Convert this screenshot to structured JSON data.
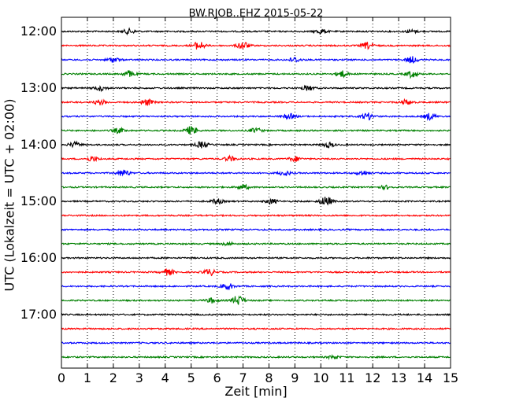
{
  "chart_data": {
    "type": "line",
    "title": "BW.RJOB..EHZ 2015-05-22",
    "xlabel": "Zeit  [min]",
    "ylabel": "UTC (Lokalzeit = UTC + 02:00)",
    "xlim": [
      0,
      15
    ],
    "x_ticks": [
      "0",
      "1",
      "2",
      "3",
      "4",
      "5",
      "6",
      "7",
      "8",
      "9",
      "10",
      "11",
      "12",
      "13",
      "14",
      "15"
    ],
    "y_ticks": [
      "12:00",
      "13:00",
      "14:00",
      "15:00",
      "16:00",
      "17:00"
    ],
    "grid": "vertical dotted",
    "colors": [
      "#000000",
      "#ff0000",
      "#0000ff",
      "#008000"
    ],
    "traces": [
      {
        "start": "12:00",
        "color": "#000000",
        "bursts": [
          {
            "x": 2.6,
            "a": 3
          },
          {
            "x": 10.0,
            "a": 3
          },
          {
            "x": 13.5,
            "a": 2
          }
        ]
      },
      {
        "start": "12:15",
        "color": "#ff0000",
        "bursts": [
          {
            "x": 5.3,
            "a": 5
          },
          {
            "x": 7.0,
            "a": 5
          },
          {
            "x": 11.8,
            "a": 4
          }
        ]
      },
      {
        "start": "12:30",
        "color": "#0000ff",
        "bursts": [
          {
            "x": 2.0,
            "a": 3
          },
          {
            "x": 9.0,
            "a": 3
          },
          {
            "x": 13.5,
            "a": 4
          }
        ]
      },
      {
        "start": "12:45",
        "color": "#008000",
        "bursts": [
          {
            "x": 2.6,
            "a": 4
          },
          {
            "x": 10.8,
            "a": 4
          },
          {
            "x": 13.5,
            "a": 4
          }
        ]
      },
      {
        "start": "13:00",
        "color": "#000000",
        "bursts": [
          {
            "x": 1.5,
            "a": 3
          },
          {
            "x": 9.5,
            "a": 3
          }
        ]
      },
      {
        "start": "13:15",
        "color": "#ff0000",
        "bursts": [
          {
            "x": 1.5,
            "a": 3
          },
          {
            "x": 3.3,
            "a": 4
          },
          {
            "x": 13.3,
            "a": 3
          }
        ]
      },
      {
        "start": "13:30",
        "color": "#0000ff",
        "bursts": [
          {
            "x": 8.8,
            "a": 3
          },
          {
            "x": 11.8,
            "a": 4
          },
          {
            "x": 14.2,
            "a": 4
          }
        ]
      },
      {
        "start": "13:45",
        "color": "#008000",
        "bursts": [
          {
            "x": 2.2,
            "a": 3
          },
          {
            "x": 5.0,
            "a": 5
          },
          {
            "x": 7.5,
            "a": 3
          }
        ]
      },
      {
        "start": "14:00",
        "color": "#000000",
        "bursts": [
          {
            "x": 0.5,
            "a": 3
          },
          {
            "x": 5.4,
            "a": 4
          },
          {
            "x": 10.3,
            "a": 3
          }
        ]
      },
      {
        "start": "14:15",
        "color": "#ff0000",
        "bursts": [
          {
            "x": 1.2,
            "a": 3
          },
          {
            "x": 6.5,
            "a": 3
          },
          {
            "x": 9.0,
            "a": 3
          }
        ]
      },
      {
        "start": "14:30",
        "color": "#0000ff",
        "bursts": [
          {
            "x": 2.4,
            "a": 4
          },
          {
            "x": 8.6,
            "a": 3
          },
          {
            "x": 11.6,
            "a": 3
          }
        ]
      },
      {
        "start": "14:45",
        "color": "#008000",
        "bursts": [
          {
            "x": 7.0,
            "a": 3
          },
          {
            "x": 12.5,
            "a": 2
          }
        ]
      },
      {
        "start": "15:00",
        "color": "#000000",
        "bursts": [
          {
            "x": 6.0,
            "a": 3
          },
          {
            "x": 8.1,
            "a": 3
          },
          {
            "x": 10.2,
            "a": 6
          }
        ]
      },
      {
        "start": "15:15",
        "color": "#ff0000",
        "bursts": []
      },
      {
        "start": "15:30",
        "color": "#0000ff",
        "bursts": []
      },
      {
        "start": "15:45",
        "color": "#008000",
        "bursts": [
          {
            "x": 6.4,
            "a": 2
          }
        ]
      },
      {
        "start": "16:00",
        "color": "#000000",
        "bursts": []
      },
      {
        "start": "16:15",
        "color": "#ff0000",
        "bursts": [
          {
            "x": 4.1,
            "a": 4
          },
          {
            "x": 5.7,
            "a": 4
          }
        ]
      },
      {
        "start": "16:30",
        "color": "#0000ff",
        "bursts": [
          {
            "x": 6.4,
            "a": 4
          }
        ]
      },
      {
        "start": "16:45",
        "color": "#008000",
        "bursts": [
          {
            "x": 5.8,
            "a": 3
          },
          {
            "x": 6.8,
            "a": 6
          }
        ]
      },
      {
        "start": "17:00",
        "color": "#000000",
        "bursts": []
      },
      {
        "start": "17:15",
        "color": "#ff0000",
        "bursts": []
      },
      {
        "start": "17:30",
        "color": "#0000ff",
        "bursts": []
      },
      {
        "start": "17:45",
        "color": "#008000",
        "bursts": [
          {
            "x": 10.5,
            "a": 2
          }
        ]
      }
    ]
  }
}
